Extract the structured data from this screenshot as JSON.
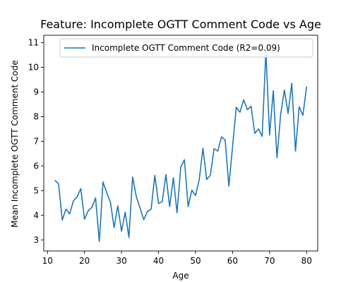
{
  "chart_data": {
    "type": "line",
    "title": "Feature: Incomplete OGTT Comment Code vs Age",
    "xlabel": "Age",
    "ylabel": "Mean Incomplete OGTT Comment Code",
    "xlim": [
      9,
      83
    ],
    "ylim": [
      2.55,
      11.3
    ],
    "xticks": [
      10,
      20,
      30,
      40,
      50,
      60,
      70,
      80
    ],
    "yticks": [
      3,
      4,
      5,
      6,
      7,
      8,
      9,
      10,
      11
    ],
    "grid": false,
    "legend_position": "top-right",
    "series": [
      {
        "name": "Incomplete OGTT Comment Code (R2=0.09)",
        "color": "#1f77b4",
        "x": [
          12,
          13,
          14,
          15,
          16,
          17,
          18,
          19,
          20,
          21,
          22,
          23,
          24,
          25,
          26,
          27,
          28,
          29,
          30,
          31,
          32,
          33,
          34,
          35,
          36,
          37,
          38,
          39,
          40,
          41,
          42,
          43,
          44,
          45,
          46,
          47,
          48,
          49,
          50,
          51,
          52,
          53,
          54,
          55,
          56,
          57,
          58,
          59,
          60,
          61,
          62,
          63,
          64,
          65,
          66,
          67,
          68,
          69,
          70,
          71,
          72,
          73,
          74,
          75,
          76,
          77,
          78,
          79,
          80
        ],
        "y": [
          5.42,
          5.27,
          3.8,
          4.25,
          4.05,
          4.58,
          4.75,
          5.08,
          3.84,
          4.18,
          4.32,
          4.7,
          2.93,
          5.35,
          4.92,
          4.53,
          3.5,
          4.38,
          3.35,
          4.12,
          3.1,
          5.55,
          4.75,
          4.3,
          3.82,
          4.15,
          4.25,
          5.62,
          4.48,
          4.55,
          5.65,
          4.35,
          5.52,
          4.1,
          5.95,
          6.25,
          4.35,
          5.02,
          4.8,
          5.45,
          6.72,
          5.45,
          5.62,
          6.7,
          6.6,
          7.18,
          7.05,
          5.18,
          6.78,
          8.38,
          8.18,
          8.68,
          8.28,
          8.42,
          7.32,
          7.5,
          7.2,
          10.65,
          7.25,
          9.05,
          6.33,
          8.1,
          9.08,
          8.13,
          9.35,
          6.6,
          8.4,
          8.05,
          9.22
        ]
      }
    ]
  }
}
